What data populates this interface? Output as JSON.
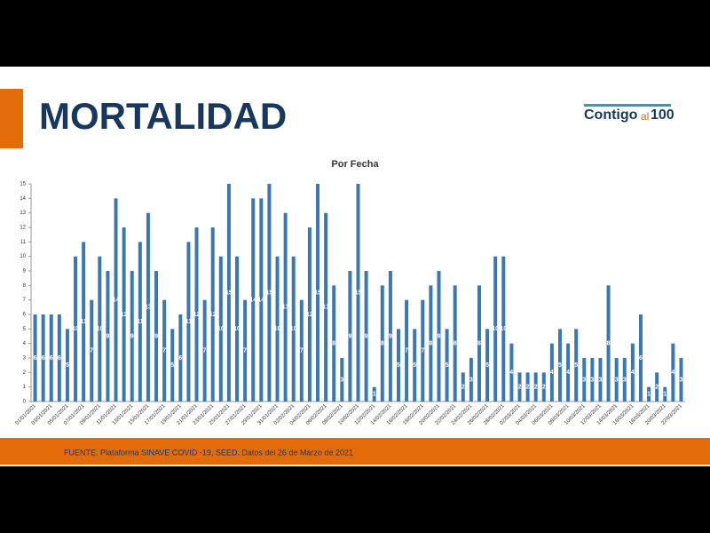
{
  "header": {
    "title": "MORTALIDAD",
    "logo": [
      "Contigo",
      "al",
      "100"
    ]
  },
  "footer": {
    "source": "FUENTE. Plataforma SINAVE COVID -19, SEED. Datos del 26 de Marzo de 2021"
  },
  "chart_data": {
    "type": "bar",
    "title": "Por Fecha",
    "color": "#3a78b5",
    "grid": false,
    "categories": [
      "01/01/2021",
      null,
      "03/01/2021",
      null,
      "05/01/2021",
      null,
      "07/01/2021",
      null,
      "09/01/2021",
      null,
      "11/01/2021",
      null,
      "13/01/2021",
      null,
      "15/01/2021",
      null,
      "17/01/2021",
      null,
      "19/01/2021",
      null,
      "21/01/2021",
      null,
      "23/01/2021",
      null,
      "25/01/2021",
      null,
      "27/01/2021",
      null,
      "29/01/2021",
      null,
      "31/01/2021",
      null,
      "02/02/2021",
      null,
      "04/02/2021",
      null,
      "06/02/2021",
      null,
      "08/02/2021",
      null,
      "10/02/2021",
      null,
      "12/02/2021",
      null,
      "14/02/2021",
      null,
      "16/02/2021",
      null,
      "18/02/2021",
      null,
      "20/02/2021",
      null,
      "22/02/2021",
      null,
      "24/02/2021",
      null,
      "26/02/2021",
      null,
      "28/02/2021",
      null,
      "02/03/2021",
      null,
      "04/03/2021",
      null,
      "06/03/2021",
      null,
      "08/03/2021",
      null,
      "10/03/2021",
      null,
      "12/03/2021",
      null,
      "14/03/2021",
      null,
      "16/03/2021",
      null,
      "18/03/2021",
      null,
      "20/03/2021",
      null,
      "22/03/2021"
    ],
    "values": [
      6,
      6,
      6,
      6,
      5,
      10,
      11,
      7,
      10,
      9,
      14,
      12,
      9,
      11,
      13,
      9,
      7,
      5,
      6,
      11,
      12,
      7,
      12,
      10,
      15,
      10,
      7,
      14,
      14,
      15,
      10,
      13,
      10,
      7,
      12,
      15,
      13,
      8,
      3,
      9,
      15,
      9,
      1,
      8,
      9,
      5,
      7,
      5,
      7,
      8,
      9,
      5,
      8,
      2,
      3,
      8,
      5,
      10,
      10,
      4,
      2,
      2,
      2,
      2,
      4,
      5,
      4,
      5,
      3,
      3,
      3,
      8,
      3,
      3,
      4,
      6,
      1,
      2,
      1,
      4,
      3
    ],
    "ylim": [
      0,
      15
    ],
    "yticks": [
      0,
      1,
      2,
      3,
      4,
      5,
      6,
      7,
      8,
      9,
      10,
      11,
      12,
      13,
      14,
      15
    ]
  }
}
